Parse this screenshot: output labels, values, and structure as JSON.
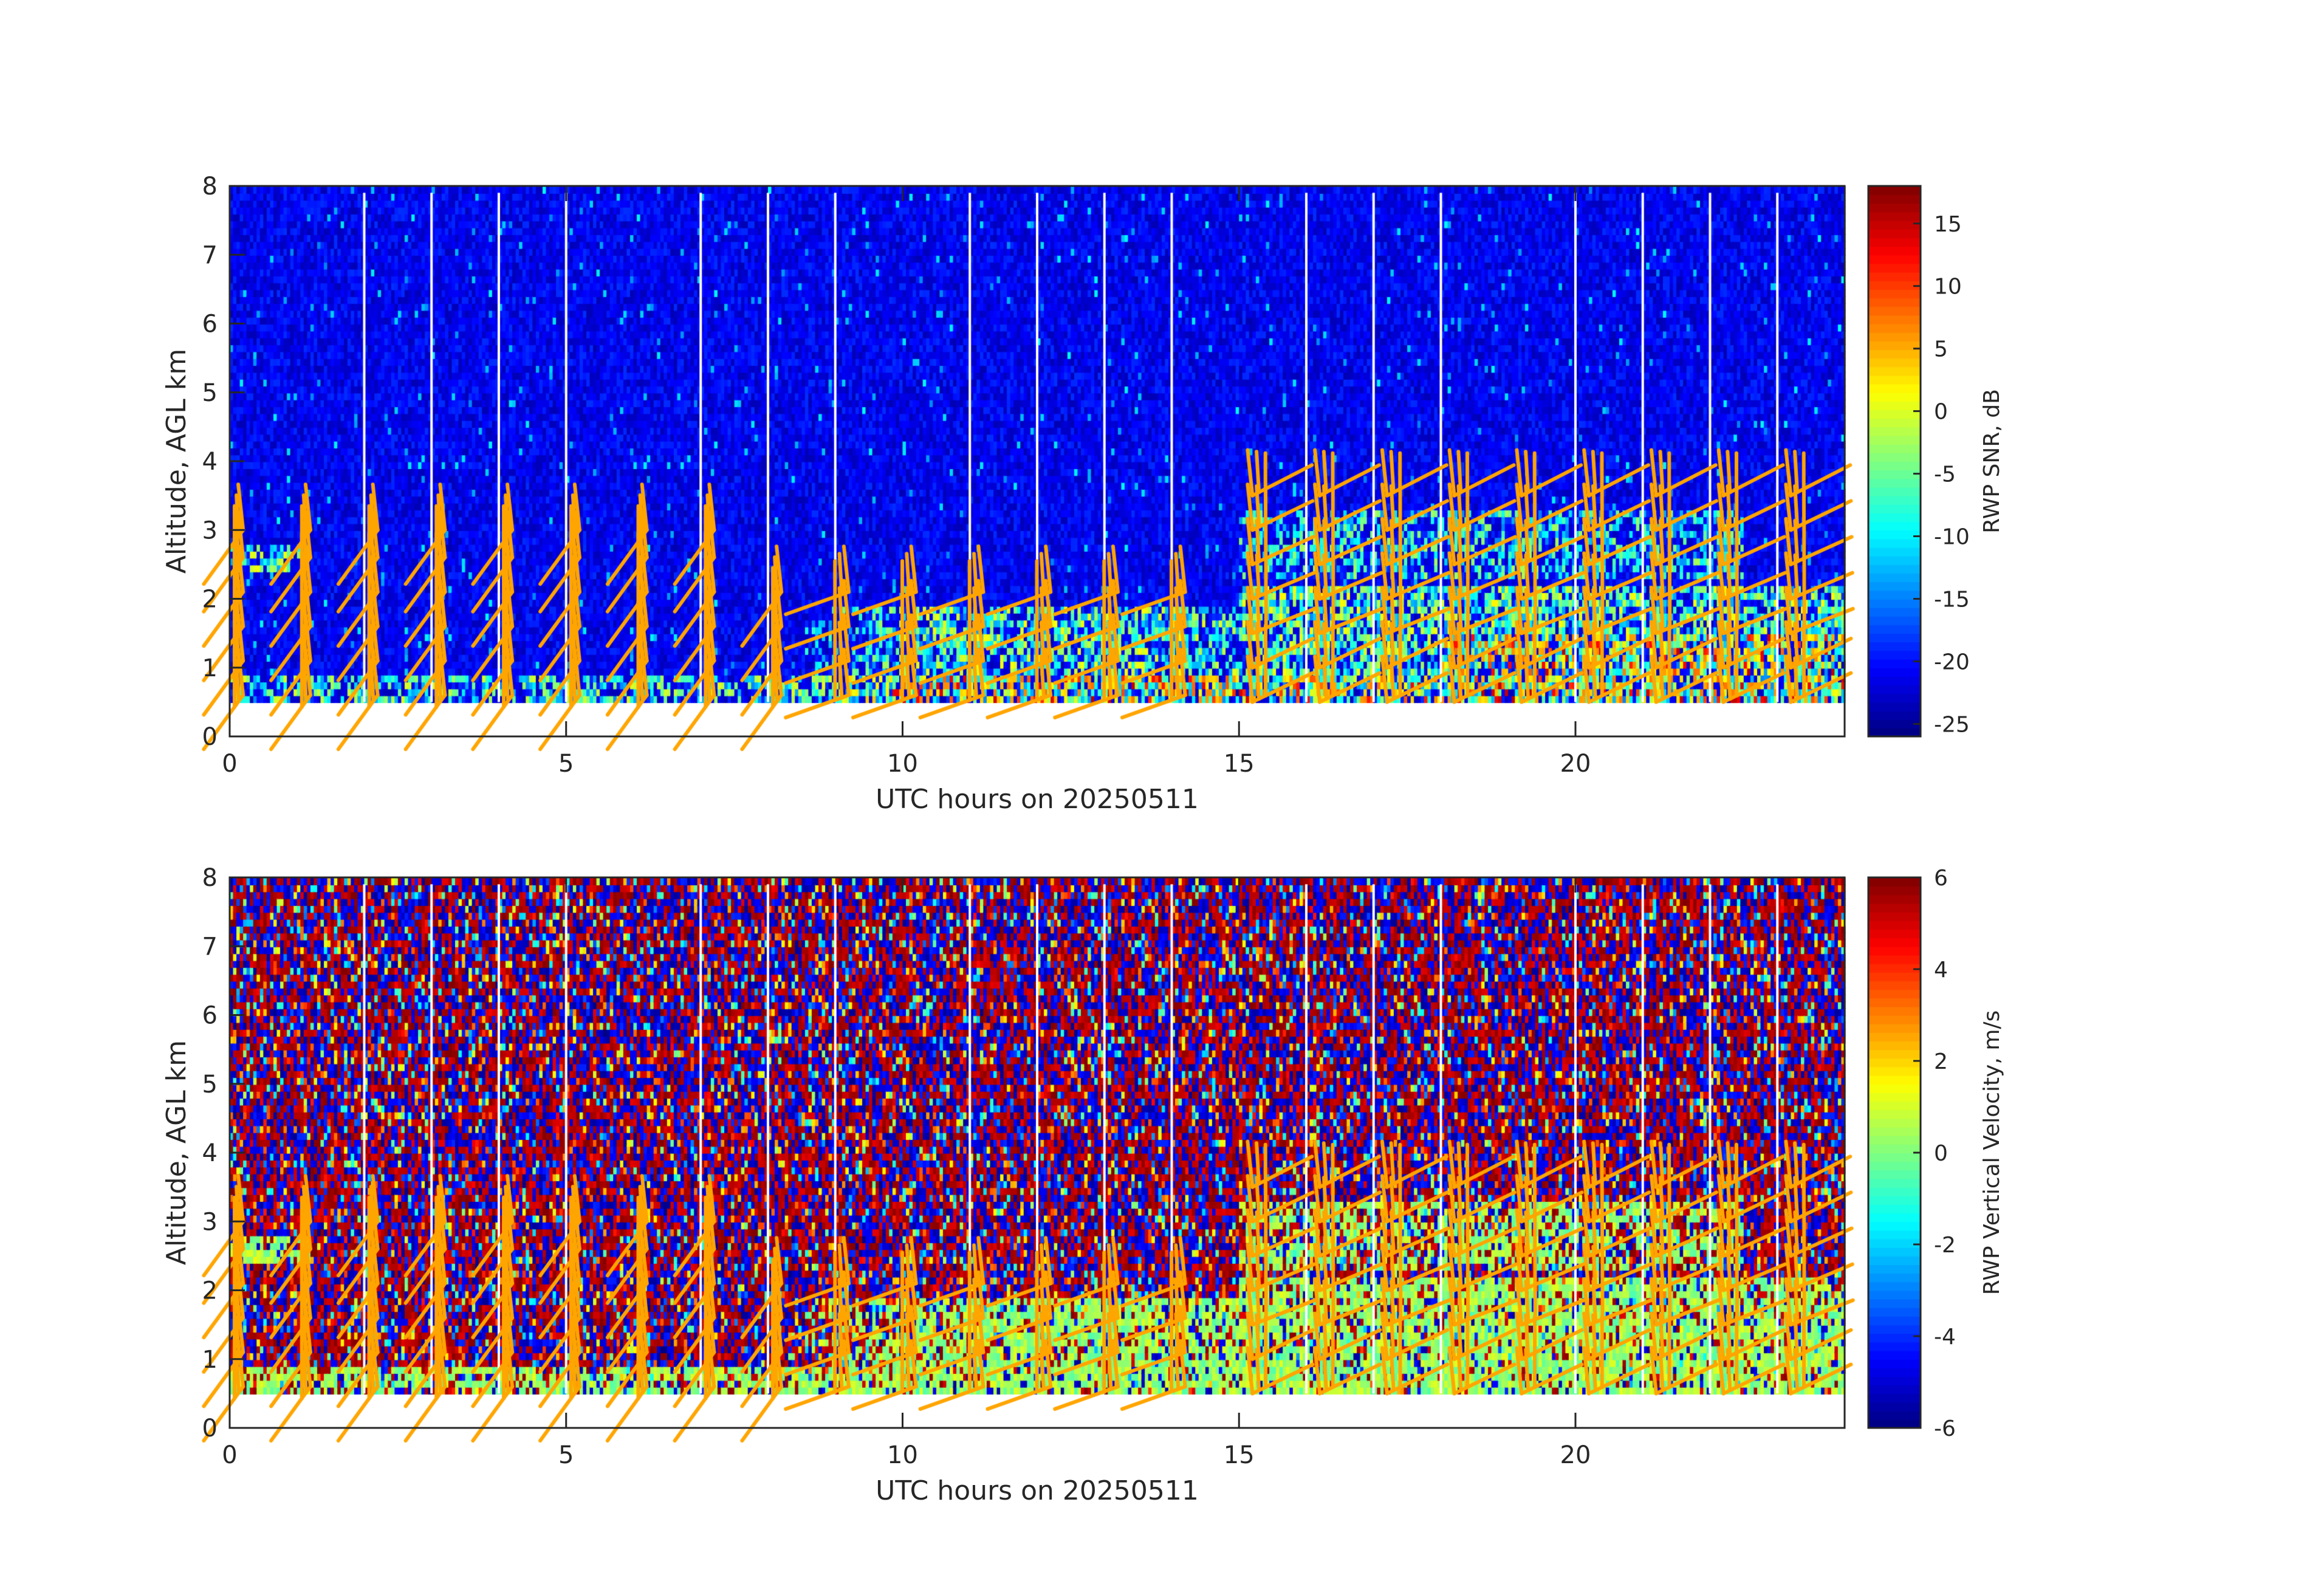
{
  "chart_data": [
    {
      "type": "heatmap",
      "title": "",
      "xlabel": "UTC hours on 20250511",
      "ylabel": "Altitude, AGL km",
      "xlim": [
        0,
        24
      ],
      "ylim": [
        0,
        8
      ],
      "xticks": [
        "0",
        "5",
        "10",
        "15",
        "20"
      ],
      "yticks": [
        "0",
        "1",
        "2",
        "3",
        "4",
        "5",
        "6",
        "7",
        "8"
      ],
      "colorbar": {
        "label": "RWP SNR, dB",
        "range": [
          -26,
          18
        ],
        "ticks": [
          "-25",
          "-20",
          "-15",
          "-10",
          "-5",
          "0",
          "5",
          "10",
          "15"
        ],
        "colormap": "jet"
      },
      "data_altitude_range_km": [
        0.5,
        7.9
      ],
      "data_gaps_hours": [
        2,
        3,
        4,
        5,
        7,
        8,
        9,
        11,
        12,
        13,
        14,
        16,
        17,
        18,
        20,
        21,
        22,
        23
      ],
      "overlay": "wind barbs",
      "overlay_color": "#FFA500"
    },
    {
      "type": "heatmap",
      "title": "",
      "xlabel": "UTC hours on 20250511",
      "ylabel": "Altitude, AGL km",
      "xlim": [
        0,
        24
      ],
      "ylim": [
        0,
        8
      ],
      "xticks": [
        "0",
        "5",
        "10",
        "15",
        "20"
      ],
      "yticks": [
        "0",
        "1",
        "2",
        "3",
        "4",
        "5",
        "6",
        "7",
        "8"
      ],
      "colorbar": {
        "label": "RWP Vertical Velocity, m/s",
        "range": [
          -6,
          6
        ],
        "ticks": [
          "-6",
          "-4",
          "-2",
          "0",
          "2",
          "4",
          "6"
        ],
        "colormap": "jet"
      },
      "data_altitude_range_km": [
        0.5,
        7.9
      ],
      "data_gaps_hours": [
        2,
        3,
        4,
        5,
        7,
        8,
        9,
        11,
        12,
        13,
        14,
        16,
        17,
        18,
        20,
        21,
        22,
        23
      ],
      "overlay": "wind barbs",
      "overlay_color": "#FFA500"
    }
  ]
}
